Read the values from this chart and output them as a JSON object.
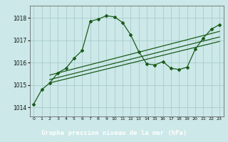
{
  "title": "Graphe pression niveau de la mer (hPa)",
  "bg_color": "#cce8e8",
  "plot_bg": "#cce8e8",
  "grid_color": "#aacccc",
  "line_color": "#1a5c1a",
  "label_bg": "#2a6e2a",
  "label_fg": "#ffffff",
  "xlim": [
    -0.5,
    23.5
  ],
  "ylim": [
    1013.6,
    1018.55
  ],
  "xticks": [
    0,
    1,
    2,
    3,
    4,
    5,
    6,
    7,
    8,
    9,
    10,
    11,
    12,
    13,
    14,
    15,
    16,
    17,
    18,
    19,
    20,
    21,
    22,
    23
  ],
  "yticks": [
    1014,
    1015,
    1016,
    1017,
    1018
  ],
  "main_x": [
    0,
    1,
    2,
    3,
    4,
    5,
    6,
    7,
    8,
    9,
    10,
    11,
    12,
    13,
    14,
    15,
    16,
    17,
    18,
    19,
    20,
    21,
    22,
    23
  ],
  "main_y": [
    1014.15,
    1014.8,
    1015.1,
    1015.55,
    1015.75,
    1016.2,
    1016.55,
    1017.85,
    1017.95,
    1018.1,
    1018.05,
    1017.8,
    1017.25,
    1016.5,
    1015.95,
    1015.9,
    1016.05,
    1015.75,
    1015.7,
    1015.8,
    1016.6,
    1017.1,
    1017.5,
    1017.7
  ],
  "trend1_x": [
    2,
    23
  ],
  "trend1_y": [
    1015.1,
    1016.95
  ],
  "trend2_x": [
    2,
    23
  ],
  "trend2_y": [
    1015.25,
    1017.15
  ],
  "trend3_x": [
    2,
    23
  ],
  "trend3_y": [
    1015.45,
    1017.4
  ]
}
